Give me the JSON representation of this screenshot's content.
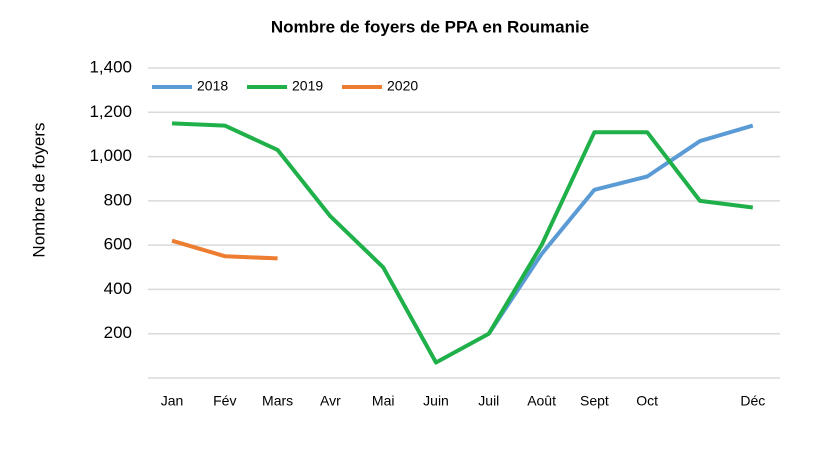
{
  "chart_data": {
    "type": "line",
    "title": "Nombre de foyers de PPA en Roumanie",
    "y_label": "Nombre de foyers",
    "categories": [
      "Jan",
      "Fév",
      "Mars",
      "Avr",
      "Mai",
      "Juin",
      "Juil",
      "Août",
      "Sept",
      "Oct",
      null,
      "Déc"
    ],
    "series": [
      {
        "name": "2018",
        "color": "#5b9bd5",
        "values": [
          null,
          null,
          null,
          null,
          null,
          null,
          200,
          560,
          850,
          910,
          1070,
          1140
        ]
      },
      {
        "name": "2019",
        "color": "#1fb04a",
        "values": [
          1150,
          1140,
          1030,
          730,
          500,
          70,
          200,
          600,
          1110,
          1110,
          800,
          770
        ]
      },
      {
        "name": "2020",
        "color": "#ed7d31",
        "values": [
          620,
          550,
          540,
          null,
          null,
          null,
          null,
          null,
          null,
          null,
          null,
          null
        ]
      }
    ],
    "ylim": [
      0,
      1400
    ],
    "yticks": [
      200,
      400,
      600,
      800,
      {
        "value": 1000,
        "label": "1,000"
      },
      {
        "value": 1200,
        "label": "1,200"
      },
      {
        "value": 1400,
        "label": "1,400"
      }
    ],
    "grid": true,
    "legend": "top-left"
  }
}
